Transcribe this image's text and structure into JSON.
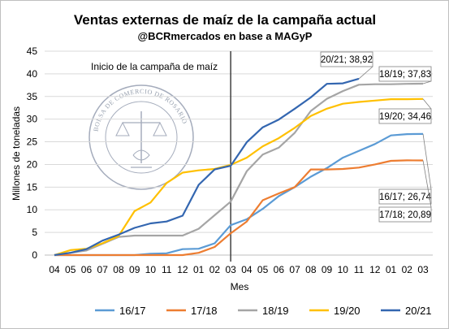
{
  "chart_data": {
    "type": "line",
    "title": "Ventas externas de maíz de la campaña actual",
    "subtitle": "@BCRmercados en base a MAGyP",
    "xlabel": "Mes",
    "ylabel": "Millones de toneladas",
    "ylim": [
      0,
      45
    ],
    "yticks": [
      0,
      5,
      10,
      15,
      20,
      25,
      30,
      35,
      40,
      45
    ],
    "x_categories": [
      "04",
      "05",
      "06",
      "07",
      "08",
      "09",
      "10",
      "11",
      "12",
      "01",
      "02",
      "03",
      "04",
      "05",
      "06",
      "07",
      "08",
      "09",
      "10",
      "11",
      "12",
      "01",
      "02",
      "03"
    ],
    "vertical_line": {
      "index": 11,
      "label": "Inicio de la campaña de maíz"
    },
    "grid": true,
    "legend_position": "bottom",
    "watermark_text": "BOLSA DE COMERCIO DE ROSARIO",
    "series": [
      {
        "name": "16/17",
        "color": "#5b9bd5",
        "values": [
          0,
          0,
          0,
          0,
          0,
          0,
          0.3,
          0.4,
          1.3,
          1.4,
          2.6,
          6.6,
          7.9,
          10.2,
          13.0,
          15.0,
          17.3,
          19.2,
          21.5,
          23.0,
          24.5,
          26.4,
          26.7,
          26.74
        ]
      },
      {
        "name": "17/18",
        "color": "#ed7d31",
        "values": [
          0,
          0,
          0,
          0,
          0,
          0,
          0,
          0,
          0,
          0.5,
          1.8,
          4.8,
          7.4,
          12.1,
          13.6,
          15.0,
          18.9,
          18.9,
          19.0,
          19.3,
          20.0,
          20.8,
          20.9,
          20.89
        ]
      },
      {
        "name": "18/19",
        "color": "#a5a5a5",
        "values": [
          0,
          0.5,
          1.0,
          2.5,
          4.0,
          4.3,
          4.3,
          4.3,
          4.3,
          5.8,
          8.8,
          11.8,
          18.5,
          22.2,
          23.7,
          27.0,
          31.8,
          34.5,
          36.2,
          37.6,
          37.7,
          37.7,
          37.8,
          37.83
        ]
      },
      {
        "name": "19/20",
        "color": "#ffc000",
        "values": [
          0,
          1.1,
          1.4,
          2.6,
          4.2,
          9.7,
          11.6,
          15.9,
          18.2,
          18.7,
          19.0,
          19.9,
          21.5,
          24.0,
          25.8,
          28.1,
          30.7,
          32.3,
          33.4,
          33.8,
          34.1,
          34.4,
          34.4,
          34.46
        ]
      },
      {
        "name": "20/21",
        "color": "#3366b0",
        "values": [
          0,
          0.5,
          1.3,
          3.2,
          4.5,
          6.0,
          7.0,
          7.4,
          8.7,
          15.5,
          18.9,
          19.7,
          24.9,
          28.2,
          29.9,
          32.3,
          34.8,
          37.8,
          37.9,
          38.92,
          null,
          null,
          null,
          null
        ]
      }
    ],
    "callouts": [
      {
        "series": "20/21",
        "text": "20/21; 38,92"
      },
      {
        "series": "18/19",
        "text": "18/19; 37,83"
      },
      {
        "series": "19/20",
        "text": "19/20; 34,46"
      },
      {
        "series": "16/17",
        "text": "16/17; 26,74"
      },
      {
        "series": "17/18",
        "text": "17/18; 20,89"
      }
    ]
  }
}
